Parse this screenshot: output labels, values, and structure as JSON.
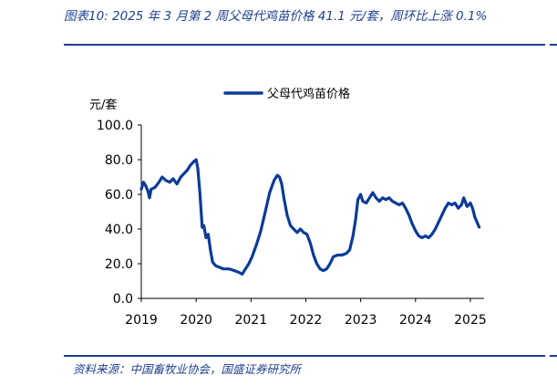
{
  "caption": "图表10: 2025 年 3 月第 2 周父母代鸡苗价格 41.1 元/套，周环比上涨 0.1%",
  "source": "资料来源：中国畜牧业协会，国盛证券研究所",
  "colors": {
    "series": "#0b3b99",
    "frame": "#1f3f8f"
  },
  "chart_data": {
    "type": "line",
    "ylabel": "元/套",
    "ylim": [
      0,
      100
    ],
    "yticks": [
      "0.0",
      "20.0",
      "40.0",
      "60.0",
      "80.0",
      "100.0"
    ],
    "xticks": [
      "2019",
      "2020",
      "2021",
      "2022",
      "2023",
      "2024",
      "2025"
    ],
    "xlim": [
      2019.0,
      2025.25
    ],
    "legend": "top",
    "grid": false,
    "series": [
      {
        "name": "父母代鸡苗价格",
        "color": "#0b3b99",
        "points": [
          [
            2019.0,
            63
          ],
          [
            2019.04,
            67
          ],
          [
            2019.08,
            65
          ],
          [
            2019.12,
            62
          ],
          [
            2019.15,
            58
          ],
          [
            2019.18,
            63
          ],
          [
            2019.25,
            64
          ],
          [
            2019.32,
            67
          ],
          [
            2019.38,
            70
          ],
          [
            2019.45,
            68
          ],
          [
            2019.52,
            67
          ],
          [
            2019.58,
            69
          ],
          [
            2019.65,
            66
          ],
          [
            2019.72,
            70
          ],
          [
            2019.78,
            72
          ],
          [
            2019.84,
            74
          ],
          [
            2019.9,
            77
          ],
          [
            2019.96,
            79
          ],
          [
            2020.0,
            80
          ],
          [
            2020.03,
            75
          ],
          [
            2020.07,
            60
          ],
          [
            2020.11,
            41
          ],
          [
            2020.14,
            42
          ],
          [
            2020.18,
            35
          ],
          [
            2020.22,
            37
          ],
          [
            2020.26,
            28
          ],
          [
            2020.3,
            21
          ],
          [
            2020.35,
            19
          ],
          [
            2020.42,
            18
          ],
          [
            2020.5,
            17
          ],
          [
            2020.6,
            17
          ],
          [
            2020.7,
            16
          ],
          [
            2020.78,
            15
          ],
          [
            2020.84,
            14
          ],
          [
            2020.9,
            17
          ],
          [
            2020.96,
            20
          ],
          [
            2021.02,
            24
          ],
          [
            2021.1,
            31
          ],
          [
            2021.18,
            39
          ],
          [
            2021.26,
            50
          ],
          [
            2021.34,
            61
          ],
          [
            2021.42,
            68
          ],
          [
            2021.48,
            71
          ],
          [
            2021.52,
            70
          ],
          [
            2021.56,
            66
          ],
          [
            2021.6,
            58
          ],
          [
            2021.66,
            48
          ],
          [
            2021.72,
            42
          ],
          [
            2021.78,
            40
          ],
          [
            2021.84,
            38
          ],
          [
            2021.9,
            40
          ],
          [
            2021.96,
            38
          ],
          [
            2022.02,
            37
          ],
          [
            2022.08,
            32
          ],
          [
            2022.14,
            25
          ],
          [
            2022.2,
            20
          ],
          [
            2022.26,
            17
          ],
          [
            2022.32,
            16
          ],
          [
            2022.38,
            17
          ],
          [
            2022.44,
            20
          ],
          [
            2022.5,
            24
          ],
          [
            2022.58,
            25
          ],
          [
            2022.66,
            25
          ],
          [
            2022.74,
            26
          ],
          [
            2022.8,
            28
          ],
          [
            2022.86,
            36
          ],
          [
            2022.91,
            46
          ],
          [
            2022.95,
            57
          ],
          [
            2023.0,
            60
          ],
          [
            2023.04,
            56
          ],
          [
            2023.1,
            55
          ],
          [
            2023.16,
            58
          ],
          [
            2023.22,
            61
          ],
          [
            2023.28,
            58
          ],
          [
            2023.34,
            56
          ],
          [
            2023.4,
            58
          ],
          [
            2023.46,
            57
          ],
          [
            2023.52,
            58
          ],
          [
            2023.58,
            56
          ],
          [
            2023.64,
            55
          ],
          [
            2023.7,
            54
          ],
          [
            2023.76,
            55
          ],
          [
            2023.82,
            52
          ],
          [
            2023.88,
            48
          ],
          [
            2023.94,
            43
          ],
          [
            2024.0,
            39
          ],
          [
            2024.06,
            36
          ],
          [
            2024.12,
            35
          ],
          [
            2024.18,
            36
          ],
          [
            2024.24,
            35
          ],
          [
            2024.3,
            37
          ],
          [
            2024.36,
            40
          ],
          [
            2024.42,
            44
          ],
          [
            2024.48,
            48
          ],
          [
            2024.54,
            52
          ],
          [
            2024.6,
            55
          ],
          [
            2024.66,
            54
          ],
          [
            2024.72,
            55
          ],
          [
            2024.78,
            52
          ],
          [
            2024.84,
            54
          ],
          [
            2024.88,
            58
          ],
          [
            2024.94,
            53
          ],
          [
            2025.0,
            55
          ],
          [
            2025.04,
            52
          ],
          [
            2025.08,
            47
          ],
          [
            2025.12,
            44
          ],
          [
            2025.16,
            41.1
          ]
        ]
      }
    ]
  }
}
